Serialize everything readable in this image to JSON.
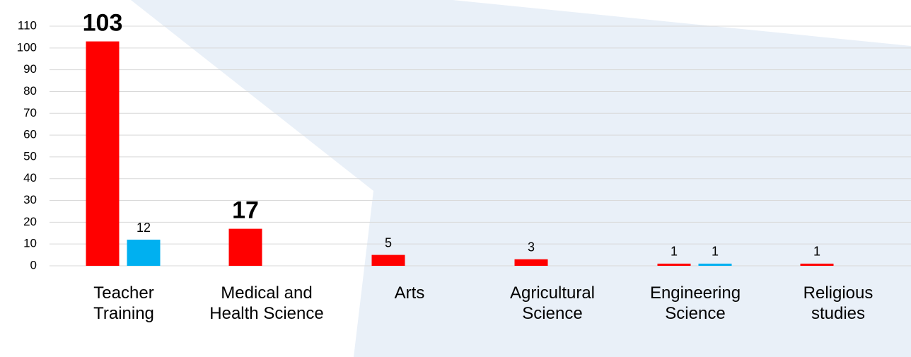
{
  "chart_data": {
    "type": "bar",
    "categories": [
      "Teacher Training",
      "Medical and Health Science",
      "Arts",
      "Agricultural Science",
      "Engineering Science",
      "Religious studies"
    ],
    "series": [
      {
        "color": "#ff0000",
        "values": [
          103,
          17,
          5,
          3,
          1,
          1
        ]
      },
      {
        "color": "#00b0f0",
        "values": [
          12,
          null,
          null,
          null,
          1,
          null
        ]
      }
    ],
    "ylim": [
      0,
      110
    ],
    "yticks": [
      0,
      10,
      20,
      30,
      40,
      50,
      60,
      70,
      80,
      90,
      100,
      110
    ],
    "grid": true
  }
}
